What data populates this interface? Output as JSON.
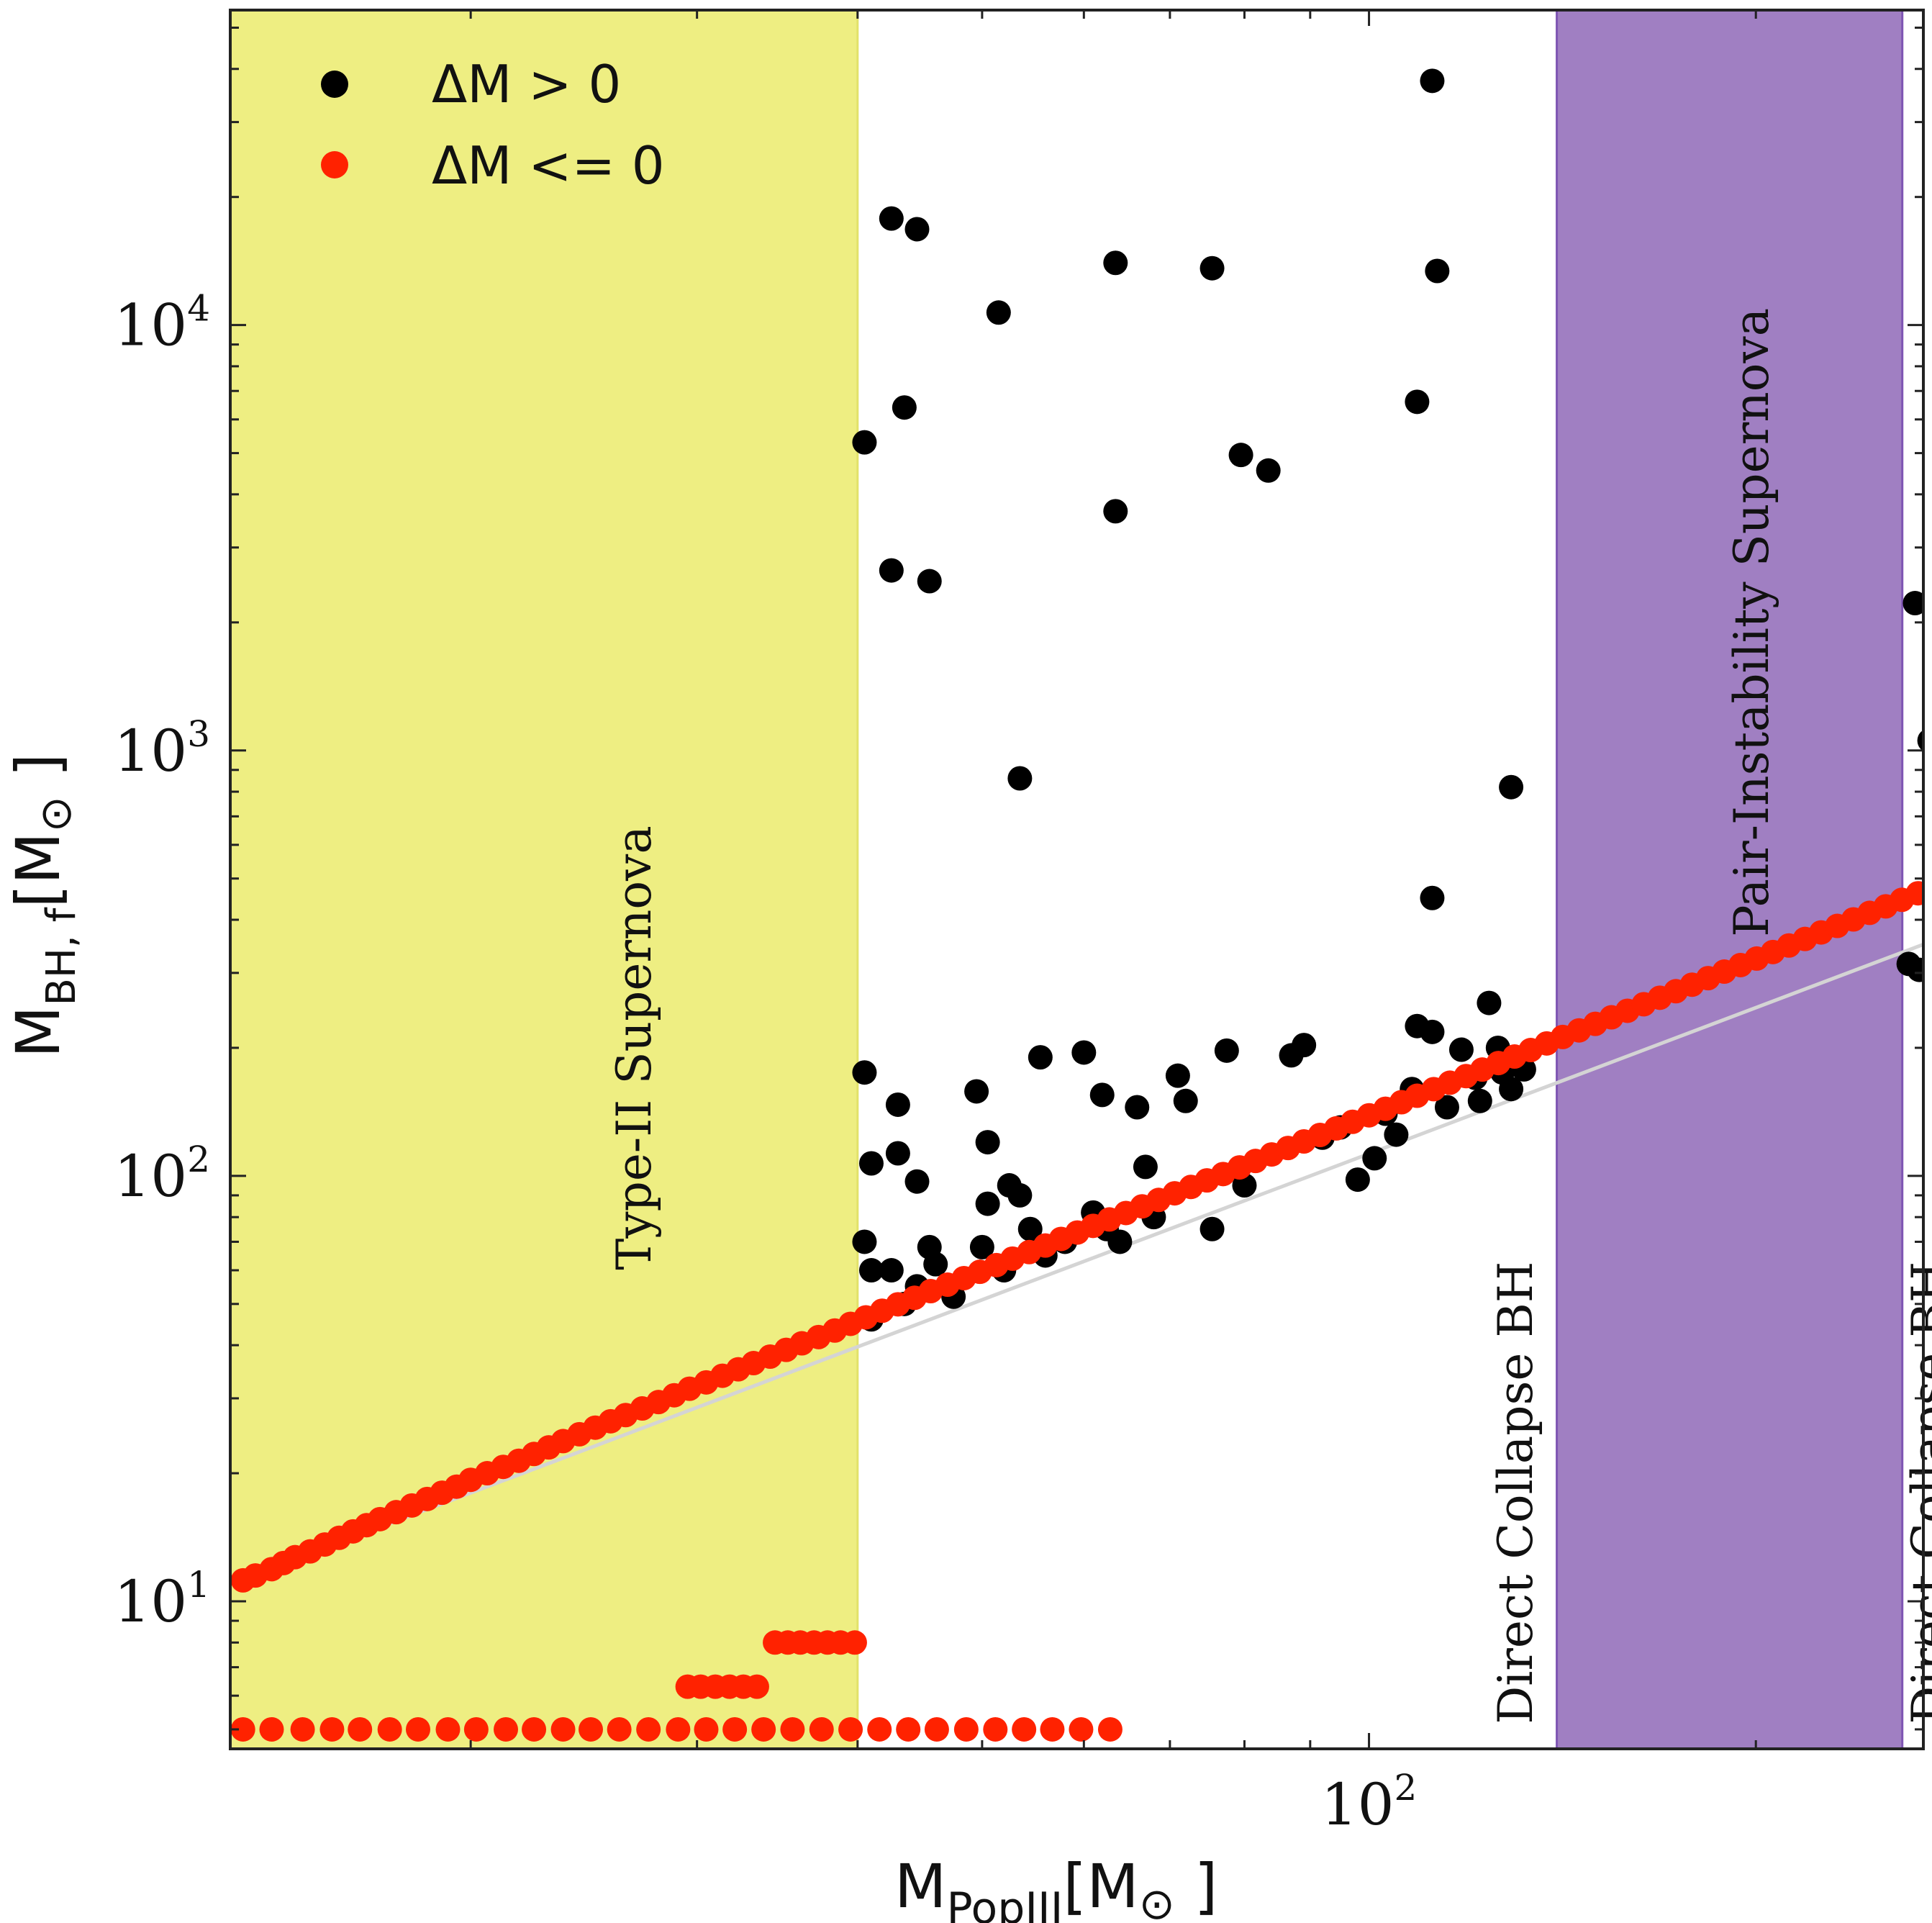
{
  "chart_data": {
    "type": "scatter",
    "xscale": "log",
    "yscale": "log",
    "xlim": [
      13,
      270
    ],
    "ylim": [
      4.5,
      55000
    ],
    "xlabel": {
      "main": "M",
      "sub": "PopIII",
      "unit_open": "[M",
      "sun": "⊙",
      "unit_close": " ]"
    },
    "ylabel": {
      "main": "M",
      "sub": "BH, f",
      "unit_open": "[M",
      "sun": "⊙",
      "unit_close": " ]"
    },
    "x_ticks": [
      {
        "value": 100,
        "base": "10",
        "exp": "2"
      }
    ],
    "y_ticks": [
      {
        "value": 10,
        "base": "10",
        "exp": "1"
      },
      {
        "value": 100,
        "base": "10",
        "exp": "2"
      },
      {
        "value": 1000,
        "base": "10",
        "exp": "3"
      },
      {
        "value": 10000,
        "base": "10",
        "exp": "4"
      }
    ],
    "regions": [
      {
        "name": "Type-II Supernova",
        "x0": 13,
        "x1": 40,
        "color": "#eeee82",
        "edge": "#e2e26a"
      },
      {
        "name": "Pair-Instability Supernova",
        "x0": 140,
        "x1": 260,
        "color": "#a07fc2",
        "edge": "#7e55b3"
      }
    ],
    "region_labels": [
      {
        "text": "Type-II Supernova",
        "x": 27,
        "y": 200
      },
      {
        "text": "Pair-Instability Supernova",
        "x": 200,
        "y": 2000
      },
      {
        "text": "Direct Collapse BH",
        "x": 131,
        "y": 18
      },
      {
        "text": "Direct Collapse BH",
        "x": 275,
        "y": 18
      }
    ],
    "reference_line": {
      "label": "",
      "color": "#d4d4d4",
      "points": [
        [
          13,
          11
        ],
        [
          270,
          350
        ]
      ]
    },
    "legend": [
      {
        "label": "ΔM > 0",
        "color": "#000000"
      },
      {
        "label": "ΔM <= 0",
        "color": "#ff2200"
      }
    ],
    "series": [
      {
        "name": "ΔM > 0",
        "color": "#000000",
        "points": [
          [
            40.5,
            5300
          ],
          [
            42.5,
            17800
          ],
          [
            44.5,
            16800
          ],
          [
            43.5,
            6400
          ],
          [
            42.5,
            2650
          ],
          [
            45.5,
            2500
          ],
          [
            51.5,
            10700
          ],
          [
            53.5,
            860
          ],
          [
            63.5,
            14000
          ],
          [
            63.5,
            3650
          ],
          [
            75.5,
            13600
          ],
          [
            79.5,
            4950
          ],
          [
            83.5,
            4550
          ],
          [
            109,
            6600
          ],
          [
            113,
            13400
          ],
          [
            112,
            37500
          ],
          [
            112,
            450
          ],
          [
            129,
            820
          ],
          [
            266,
            2220
          ],
          [
            273,
            1055
          ],
          [
            263,
            315
          ],
          [
            268,
            305
          ],
          [
            40.5,
            175
          ],
          [
            41,
            107
          ],
          [
            40.5,
            70
          ],
          [
            41,
            60
          ],
          [
            41,
            46
          ],
          [
            43,
            147
          ],
          [
            43,
            113
          ],
          [
            44.5,
            97
          ],
          [
            45.5,
            68
          ],
          [
            42.5,
            60
          ],
          [
            43.5,
            50
          ],
          [
            44.5,
            55
          ],
          [
            46,
            62
          ],
          [
            47.5,
            52
          ],
          [
            49.5,
            158
          ],
          [
            50.5,
            120
          ],
          [
            50.5,
            86
          ],
          [
            50,
            68
          ],
          [
            52.5,
            95
          ],
          [
            53.5,
            90
          ],
          [
            54.5,
            75
          ],
          [
            55.5,
            190
          ],
          [
            52,
            60
          ],
          [
            56,
            65
          ],
          [
            58,
            70
          ],
          [
            60,
            195
          ],
          [
            62,
            155
          ],
          [
            61,
            82
          ],
          [
            62.5,
            75
          ],
          [
            64,
            70
          ],
          [
            66,
            145
          ],
          [
            67,
            105
          ],
          [
            68,
            80
          ],
          [
            71,
            172
          ],
          [
            72,
            150
          ],
          [
            75.5,
            75
          ],
          [
            77.5,
            197
          ],
          [
            80,
            95
          ],
          [
            87,
            192
          ],
          [
            89,
            203
          ],
          [
            92,
            123
          ],
          [
            95,
            130
          ],
          [
            98,
            98
          ],
          [
            101,
            110
          ],
          [
            103,
            140
          ],
          [
            105,
            125
          ],
          [
            108,
            160
          ],
          [
            109,
            225
          ],
          [
            112,
            218
          ],
          [
            115,
            145
          ],
          [
            118,
            198
          ],
          [
            121,
            170
          ],
          [
            122,
            150
          ],
          [
            124,
            255
          ],
          [
            126,
            200
          ],
          [
            127,
            175
          ],
          [
            129,
            160
          ],
          [
            132,
            178
          ]
        ]
      },
      {
        "name": "ΔM <= 0",
        "color": "#ff2200",
        "points": [
          [
            13.3,
            11.2
          ],
          [
            13.6,
            11.5
          ],
          [
            14,
            11.9
          ],
          [
            14.3,
            12.3
          ],
          [
            14.6,
            12.7
          ],
          [
            15,
            13.1
          ],
          [
            15.4,
            13.6
          ],
          [
            15.8,
            14.1
          ],
          [
            16.2,
            14.6
          ],
          [
            16.6,
            15.1
          ],
          [
            17,
            15.6
          ],
          [
            17.5,
            16.2
          ],
          [
            18,
            16.8
          ],
          [
            18.5,
            17.4
          ],
          [
            19,
            18
          ],
          [
            19.5,
            18.6
          ],
          [
            20,
            19.3
          ],
          [
            20.6,
            20
          ],
          [
            21.2,
            20.7
          ],
          [
            21.8,
            21.4
          ],
          [
            22.4,
            22.2
          ],
          [
            23,
            23
          ],
          [
            23.6,
            23.8
          ],
          [
            24.3,
            24.7
          ],
          [
            25,
            25.6
          ],
          [
            25.7,
            26.5
          ],
          [
            26.4,
            27.4
          ],
          [
            27.2,
            28.4
          ],
          [
            28,
            29.4
          ],
          [
            28.8,
            30.5
          ],
          [
            29.6,
            31.6
          ],
          [
            30.5,
            32.7
          ],
          [
            31.4,
            33.9
          ],
          [
            32.3,
            35.1
          ],
          [
            33.2,
            36.3
          ],
          [
            34.2,
            37.6
          ],
          [
            35.2,
            39
          ],
          [
            36.2,
            40.4
          ],
          [
            37.3,
            41.8
          ],
          [
            38.4,
            43.3
          ],
          [
            39.5,
            44.9
          ],
          [
            40.6,
            46.5
          ],
          [
            41.8,
            48.2
          ],
          [
            43,
            49.9
          ],
          [
            44.3,
            51.7
          ],
          [
            45.6,
            53.6
          ],
          [
            47,
            55.5
          ],
          [
            48.4,
            57.5
          ],
          [
            49.8,
            59.5
          ],
          [
            51.3,
            61.7
          ],
          [
            52.8,
            63.9
          ],
          [
            54.4,
            66.2
          ],
          [
            56,
            68.6
          ],
          [
            57.6,
            71.1
          ],
          [
            59.3,
            73.6
          ],
          [
            61,
            76.3
          ],
          [
            62.8,
            79
          ],
          [
            64.7,
            81.8
          ],
          [
            66.6,
            84.8
          ],
          [
            68.6,
            87.8
          ],
          [
            70.6,
            91
          ],
          [
            72.7,
            94.2
          ],
          [
            74.8,
            97.6
          ],
          [
            77,
            101
          ],
          [
            79.3,
            104.7
          ],
          [
            81.6,
            108.4
          ],
          [
            84,
            112.3
          ],
          [
            86.5,
            116.3
          ],
          [
            89,
            120.5
          ],
          [
            91.6,
            124.8
          ],
          [
            94.3,
            129.3
          ],
          [
            97.1,
            134
          ],
          [
            100,
            138.8
          ],
          [
            103,
            143.8
          ],
          [
            106,
            149
          ],
          [
            109,
            154.3
          ],
          [
            112.3,
            159.9
          ],
          [
            115.6,
            165.6
          ],
          [
            119,
            171.6
          ],
          [
            122.5,
            177.8
          ],
          [
            126.1,
            184.2
          ],
          [
            129.8,
            190.8
          ],
          [
            133.6,
            197.6
          ],
          [
            137.5,
            204.8
          ],
          [
            141.5,
            212.1
          ],
          [
            145.7,
            219.8
          ],
          [
            150,
            227.7
          ],
          [
            154.4,
            235.9
          ],
          [
            158.9,
            244.4
          ],
          [
            163.6,
            253.2
          ],
          [
            168.4,
            262.3
          ],
          [
            173.3,
            271.7
          ],
          [
            178.4,
            281.5
          ],
          [
            183.6,
            291.6
          ],
          [
            189,
            302.1
          ],
          [
            194.6,
            313
          ],
          [
            200.3,
            324.2
          ],
          [
            206.2,
            335.9
          ],
          [
            212.2,
            348
          ],
          [
            218.4,
            360.5
          ],
          [
            224.8,
            373.5
          ],
          [
            231.4,
            386.9
          ],
          [
            238.2,
            400.8
          ],
          [
            245.2,
            415.2
          ],
          [
            252.4,
            430.1
          ],
          [
            259.8,
            445.6
          ],
          [
            267.4,
            461.6
          ],
          [
            13.3,
            5
          ],
          [
            14,
            5
          ],
          [
            14.8,
            5
          ],
          [
            15.6,
            5
          ],
          [
            16.4,
            5
          ],
          [
            17.3,
            5
          ],
          [
            18.2,
            5
          ],
          [
            19.2,
            5
          ],
          [
            20.2,
            5
          ],
          [
            21.3,
            5
          ],
          [
            22.4,
            5
          ],
          [
            23.6,
            5
          ],
          [
            24.8,
            5
          ],
          [
            26.1,
            5
          ],
          [
            27.5,
            5
          ],
          [
            29,
            5
          ],
          [
            30.5,
            5
          ],
          [
            32.1,
            5
          ],
          [
            33.8,
            5
          ],
          [
            35.6,
            5
          ],
          [
            37.5,
            5
          ],
          [
            39.5,
            5
          ],
          [
            41.6,
            5
          ],
          [
            43.8,
            5
          ],
          [
            46.1,
            5
          ],
          [
            48.6,
            5
          ],
          [
            51.2,
            5
          ],
          [
            53.9,
            5
          ],
          [
            56.7,
            5
          ],
          [
            59.7,
            5
          ],
          [
            62.9,
            5
          ],
          [
            29.5,
            6.3
          ],
          [
            30.2,
            6.3
          ],
          [
            31,
            6.3
          ],
          [
            31.8,
            6.3
          ],
          [
            32.6,
            6.3
          ],
          [
            33.4,
            6.3
          ],
          [
            34.5,
            8
          ],
          [
            35.3,
            8
          ],
          [
            36.1,
            8
          ],
          [
            37,
            8
          ],
          [
            37.9,
            8
          ],
          [
            38.8,
            8
          ],
          [
            39.8,
            8
          ]
        ]
      }
    ]
  }
}
